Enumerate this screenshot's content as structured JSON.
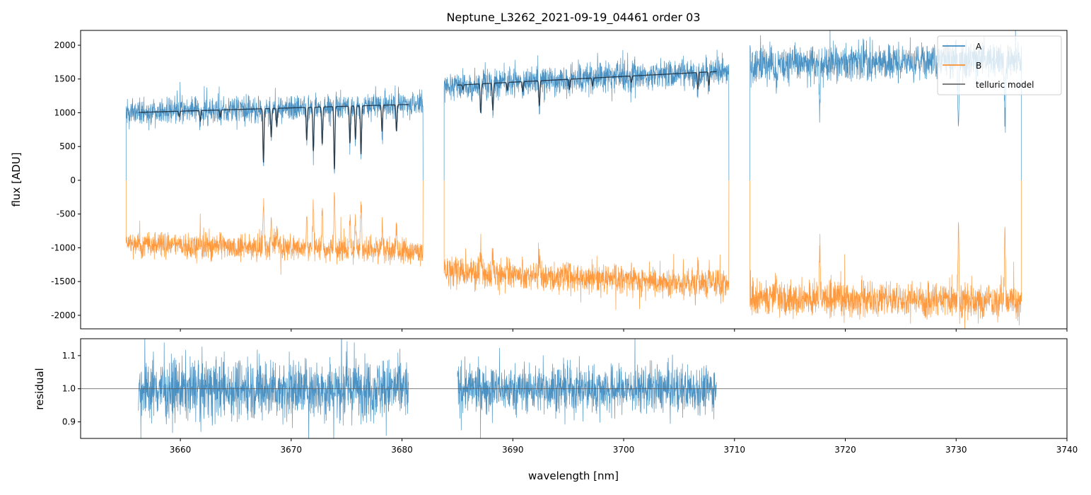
{
  "chart_data": [
    {
      "type": "line",
      "title": "Neptune_L3262_2021-09-19_04461  order 03",
      "xlabel": "",
      "ylabel": "flux [ADU]",
      "xlim": [
        3651,
        3740
      ],
      "ylim": [
        -2200,
        2220
      ],
      "yticks": [
        2000,
        1500,
        1000,
        500,
        0,
        -500,
        -1000,
        -1500,
        -2000
      ],
      "xticks": [
        3660,
        3670,
        3680,
        3690,
        3700,
        3710,
        3720,
        3730,
        3740
      ],
      "legend": {
        "position": "top-right",
        "entries": [
          "A",
          "B",
          "telluric model"
        ]
      },
      "colors": {
        "A": "#1f77b4",
        "B": "#ff7f0e",
        "telluric model": "#1a2a3a"
      },
      "segments": [
        {
          "range": [
            3655.1,
            3681.9
          ],
          "model_range": [
            3656.2,
            3680.6
          ],
          "A_continuum": [
            1000,
            1130
          ],
          "B_continuum": [
            950,
            1050
          ],
          "noise": 95,
          "lines": [
            [
              3659.9,
              0.08
            ],
            [
              3661.8,
              0.15
            ],
            [
              3663.6,
              0.1
            ],
            [
              3667.5,
              0.75
            ],
            [
              3668.2,
              0.4
            ],
            [
              3668.7,
              0.25
            ],
            [
              3671.4,
              0.45
            ],
            [
              3672.0,
              0.6
            ],
            [
              3672.8,
              0.5
            ],
            [
              3673.9,
              0.85
            ],
            [
              3675.3,
              0.5
            ],
            [
              3675.8,
              0.45
            ],
            [
              3676.3,
              0.65
            ],
            [
              3678.2,
              0.35
            ],
            [
              3679.5,
              0.35
            ]
          ]
        },
        {
          "range": [
            3683.8,
            3709.5
          ],
          "model_range": [
            3685.0,
            3708.4
          ],
          "A_continuum": [
            1400,
            1620
          ],
          "B_continuum": [
            1350,
            1550
          ],
          "noise": 110,
          "lines": [
            [
              3685.5,
              0.05
            ],
            [
              3687.1,
              0.3
            ],
            [
              3688.2,
              0.28
            ],
            [
              3689.5,
              0.08
            ],
            [
              3690.9,
              0.1
            ],
            [
              3692.4,
              0.25
            ],
            [
              3695.1,
              0.1
            ],
            [
              3697.2,
              0.08
            ],
            [
              3700.7,
              0.06
            ],
            [
              3706.7,
              0.15
            ],
            [
              3707.7,
              0.12
            ]
          ]
        },
        {
          "range": [
            3711.4,
            3735.9
          ],
          "model_range": null,
          "A_continuum": [
            1720,
            1800
          ],
          "B_continuum": [
            1740,
            1790
          ],
          "noise": 130,
          "lines": [
            [
              3713.8,
              0.2
            ],
            [
              3717.7,
              0.4
            ],
            [
              3730.2,
              0.55
            ],
            [
              3734.4,
              0.55
            ]
          ]
        }
      ]
    },
    {
      "type": "line",
      "xlabel": "wavelength [nm]",
      "ylabel": "residual",
      "xlim": [
        3651,
        3740
      ],
      "ylim": [
        0.85,
        1.151
      ],
      "yticks": [
        0.9,
        1.0,
        1.1
      ],
      "ytick_labels": [
        "0.9",
        "1.0",
        "1.1"
      ],
      "xticks": [
        3660,
        3670,
        3680,
        3690,
        3700,
        3710,
        3720,
        3730,
        3740
      ],
      "reference_line": 1.0,
      "segments": [
        {
          "range": [
            3656.2,
            3680.6
          ],
          "mean": 1.0,
          "noise": 0.045
        },
        {
          "range": [
            3685.0,
            3708.4
          ],
          "mean": 1.0,
          "noise": 0.035
        }
      ]
    }
  ]
}
